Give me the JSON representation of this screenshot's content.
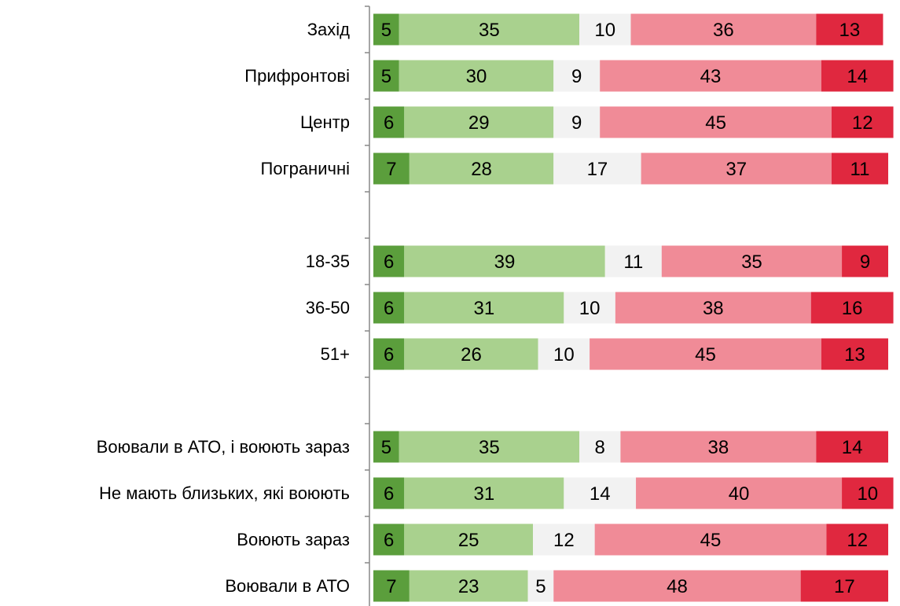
{
  "chart_data": {
    "type": "stacked-bar-horizontal",
    "categories": [
      "Захід",
      "Прифронтові",
      "Центр",
      "Пограничні",
      null,
      "18-35",
      "36-50",
      "51+",
      null,
      "Воювали в АТО, і воюють зараз",
      "Не мають близьких, які воюють",
      "Воюють зараз",
      "Воювали в АТО"
    ],
    "xlim": [
      0,
      100
    ],
    "series": [
      {
        "color": "#5b9e3c",
        "values": [
          5,
          5,
          6,
          7,
          null,
          6,
          6,
          6,
          null,
          5,
          6,
          6,
          7
        ]
      },
      {
        "color": "#a9d18e",
        "values": [
          35,
          30,
          29,
          28,
          null,
          39,
          31,
          26,
          null,
          35,
          31,
          25,
          23
        ]
      },
      {
        "color": "#f2f2f2",
        "values": [
          10,
          9,
          9,
          17,
          null,
          11,
          10,
          10,
          null,
          8,
          14,
          12,
          5
        ]
      },
      {
        "color": "#f08b97",
        "values": [
          36,
          43,
          45,
          37,
          null,
          35,
          38,
          45,
          null,
          38,
          40,
          45,
          48
        ]
      },
      {
        "color": "#e0283f",
        "values": [
          13,
          14,
          12,
          11,
          null,
          9,
          16,
          13,
          null,
          14,
          10,
          12,
          17
        ]
      }
    ]
  }
}
